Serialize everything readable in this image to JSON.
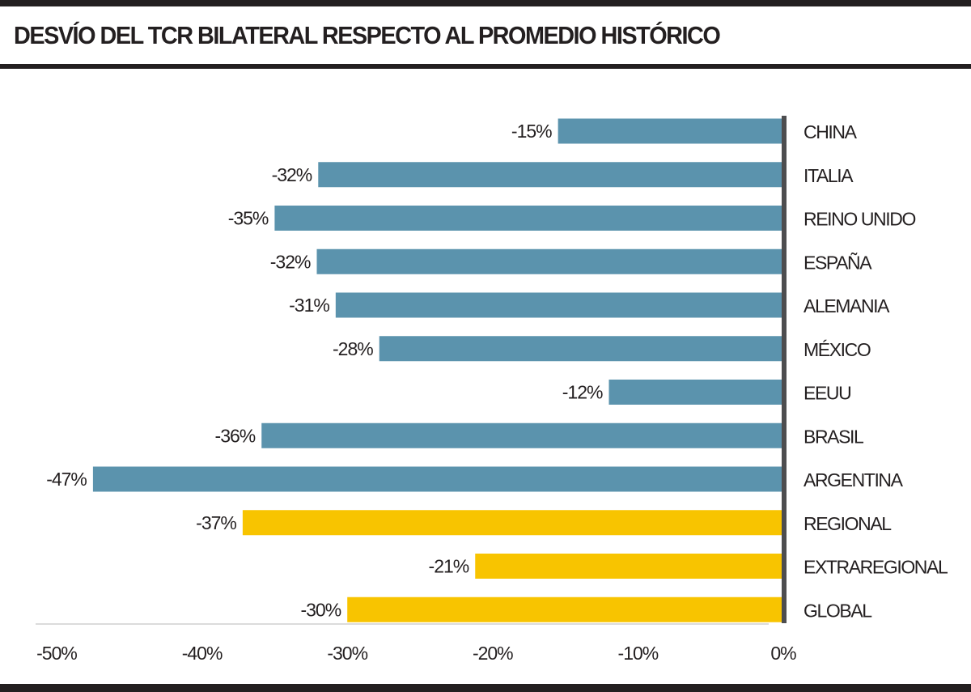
{
  "title": "DESVÍO DEL TCR BILATERAL RESPECTO AL PROMEDIO HISTÓRICO",
  "colors": {
    "primary": "#5b93ad",
    "highlight": "#f8c400",
    "axis": "#4d4d4f",
    "text": "#231f20",
    "gridline": "#cfcfcf"
  },
  "chart_data": {
    "type": "bar",
    "orientation": "horizontal",
    "title": "DESVÍO DEL TCR BILATERAL RESPECTO AL PROMEDIO HISTÓRICO",
    "xlabel": "",
    "ylabel": "",
    "xlim": [
      -50,
      0
    ],
    "ticks": [
      -50,
      -40,
      -30,
      -20,
      -10,
      0
    ],
    "tick_labels": [
      "-50%",
      "-40%",
      "-30%",
      "-20%",
      "-10%",
      "0%"
    ],
    "grid": false,
    "categories": [
      "CHINA",
      "ITALIA",
      "REINO UNIDO",
      "ESPAÑA",
      "ALEMANIA",
      "MÉXICO",
      "EEUU",
      "BRASIL",
      "ARGENTINA",
      "REGIONAL",
      "EXTRAREGIONAL",
      "GLOBAL"
    ],
    "values": [
      -15.5,
      -32,
      -35,
      -32.1,
      -30.8,
      -27.8,
      -12,
      -35.9,
      -47.5,
      -37.2,
      -21.2,
      -30
    ],
    "value_labels": [
      "-15%",
      "-32%",
      "-35%",
      "-32%",
      "-31%",
      "-28%",
      "-12%",
      "-36%",
      "-47%",
      "-37%",
      "-21%",
      "-30%"
    ],
    "bar_colors": [
      "#5b93ad",
      "#5b93ad",
      "#5b93ad",
      "#5b93ad",
      "#5b93ad",
      "#5b93ad",
      "#5b93ad",
      "#5b93ad",
      "#5b93ad",
      "#f8c400",
      "#f8c400",
      "#f8c400"
    ]
  }
}
